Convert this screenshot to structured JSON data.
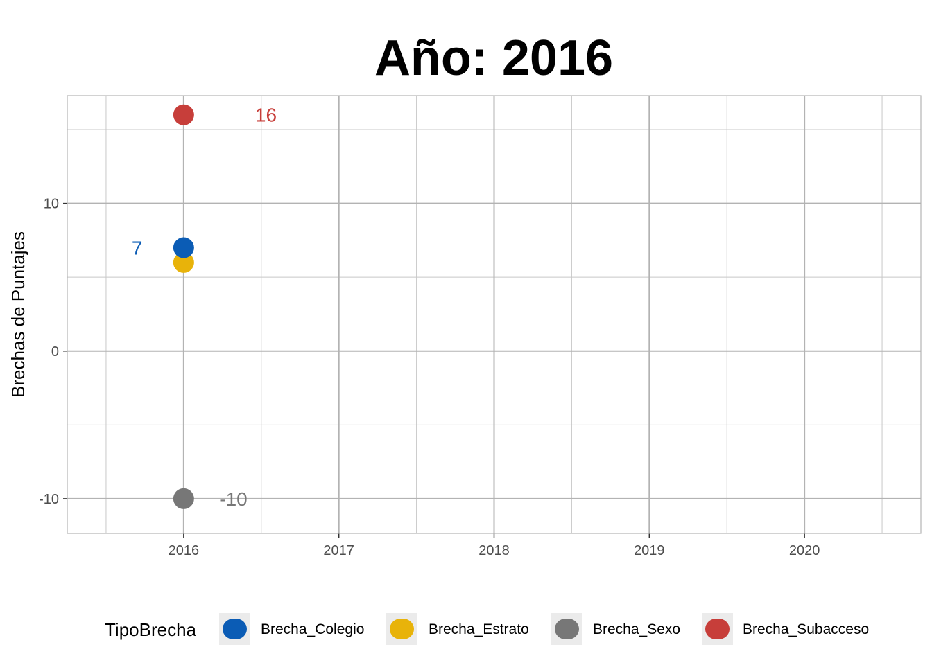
{
  "chart_data": {
    "type": "scatter",
    "title": "Año: 2016",
    "xlabel": "",
    "ylabel": "Brechas de Puntajes",
    "xlim": [
      2015.25,
      2020.75
    ],
    "ylim": [
      -12.35,
      17.3
    ],
    "x_ticks": [
      2016,
      2017,
      2018,
      2019,
      2020
    ],
    "x_tick_labels": [
      "2016",
      "2017",
      "2018",
      "2019",
      "2020"
    ],
    "y_ticks": [
      -10,
      0,
      10
    ],
    "y_tick_labels": [
      "-10",
      "0",
      "10"
    ],
    "grid": true,
    "legend_title": "TipoBrecha",
    "legend_position": "bottom",
    "series": [
      {
        "name": "Brecha_Colegio",
        "color": "#0B5CB5",
        "x": 2016,
        "y": 7,
        "label": "7",
        "label_x": 2015.7
      },
      {
        "name": "Brecha_Estrato",
        "color": "#E8B30A",
        "x": 2016,
        "y": 6,
        "label": null,
        "label_x": null
      },
      {
        "name": "Brecha_Sexo",
        "color": "#777777",
        "x": 2016,
        "y": -10,
        "label": "-10",
        "label_x": 2016.32
      },
      {
        "name": "Brecha_Subacceso",
        "color": "#C73E3A",
        "x": 2016,
        "y": 16,
        "label": "16",
        "label_x": 2016.53
      }
    ]
  }
}
